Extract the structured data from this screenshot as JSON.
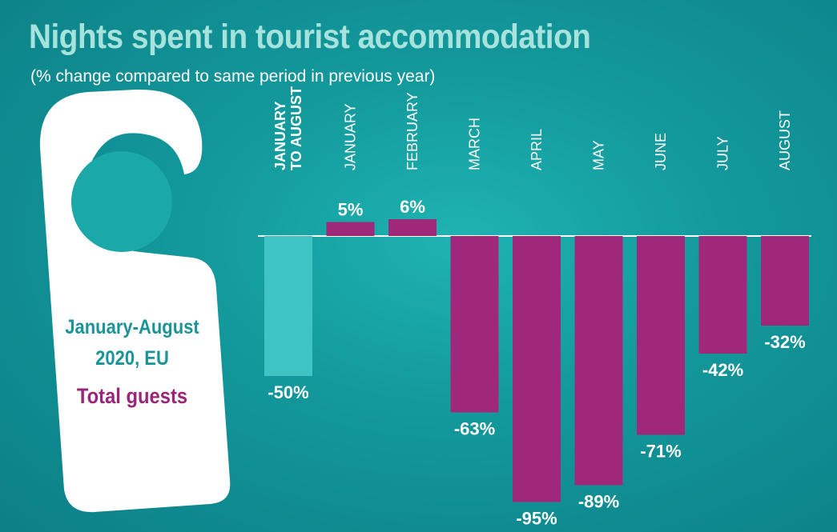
{
  "title": "Nights spent in tourist accommodation",
  "subtitle": "(% change compared to same period in previous year)",
  "hanger": {
    "line1": "January-August",
    "line2": "2020, EU",
    "line3": "Total guests"
  },
  "colors": {
    "highlight_bar": "#3fc4c3",
    "bar": "#a0287a",
    "hanger": "#ffffff",
    "hanger_hole": "#1aa8a8",
    "title": "#a6e3dd",
    "label": "#ffffff"
  },
  "chart_data": {
    "type": "bar",
    "categories": [
      "JANUARY\nTO AUGUST",
      "JANUARY",
      "FEBRUARY",
      "MARCH",
      "APRIL",
      "MAY",
      "JUNE",
      "JULY",
      "AUGUST"
    ],
    "values": [
      -50,
      5,
      6,
      -63,
      -95,
      -89,
      -71,
      -42,
      -32
    ],
    "data_labels": [
      "-50%",
      "5%",
      "6%",
      "-63%",
      "-95%",
      "-89%",
      "-71%",
      "-42%",
      "-32%"
    ],
    "highlight_index": 0,
    "ylim": [
      -95,
      6
    ],
    "grid": false,
    "legend": "none"
  }
}
